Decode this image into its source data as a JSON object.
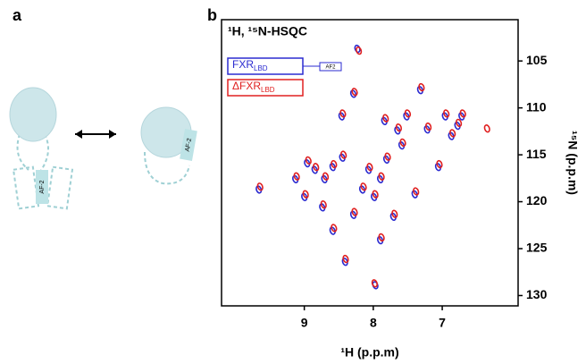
{
  "panel_a": {
    "label": "a",
    "domain_labels": [
      "AF-2",
      "AF-2"
    ]
  },
  "chart_data": {
    "type": "scatter",
    "panel_label": "b",
    "title": "¹H, ¹⁵N-HSQC",
    "xlabel": "¹H (p.p.m)",
    "ylabel": "¹⁵N (p.p.m)",
    "xlim": [
      10.2,
      5.9
    ],
    "xticks": [
      9,
      8,
      7
    ],
    "ylim": [
      131.1,
      100.6
    ],
    "yticks": [
      105,
      110,
      115,
      120,
      125,
      130
    ],
    "legend_position": "upper left",
    "legend_inset_label": "AF2",
    "series": [
      {
        "name": "FXR",
        "name_sub": "LBD",
        "color": "#2b2bd0",
        "x": [
          9.66,
          8.96,
          8.85,
          8.71,
          8.59,
          8.45,
          8.46,
          8.29,
          8.23,
          8.16,
          8.07,
          7.99,
          7.9,
          7.81,
          7.71,
          7.59,
          7.65,
          7.4,
          7.22,
          7.06,
          6.87,
          6.78,
          6.72,
          6.96,
          8.41,
          7.97,
          8.59,
          8.29,
          7.9,
          7.32,
          8.74,
          9.0,
          9.13,
          7.52,
          7.84
        ],
        "values": [
          118.7,
          115.9,
          116.6,
          117.6,
          116.3,
          115.3,
          110.9,
          108.5,
          103.7,
          118.7,
          116.6,
          119.5,
          117.6,
          115.5,
          121.6,
          114.0,
          112.4,
          119.2,
          112.3,
          116.3,
          113.0,
          111.9,
          110.9,
          110.9,
          126.4,
          128.9,
          123.1,
          121.4,
          124.1,
          108.1,
          120.6,
          119.5,
          117.6,
          110.9,
          111.4
        ]
      },
      {
        "name": "ΔFXR",
        "name_sub": "LBD",
        "color": "#e02020",
        "x": [
          9.64,
          8.94,
          8.83,
          8.69,
          8.57,
          8.43,
          8.44,
          8.27,
          8.21,
          8.14,
          8.05,
          7.97,
          7.88,
          7.79,
          7.69,
          7.57,
          7.63,
          7.38,
          7.2,
          7.04,
          6.85,
          6.76,
          6.7,
          6.94,
          8.4,
          7.98,
          8.57,
          8.27,
          7.88,
          7.3,
          8.72,
          8.98,
          9.11,
          7.5,
          7.82,
          6.35
        ],
        "values": [
          118.4,
          115.6,
          116.3,
          117.3,
          116.0,
          115.0,
          110.6,
          108.3,
          103.9,
          118.4,
          116.3,
          119.2,
          117.3,
          115.2,
          121.3,
          113.7,
          112.1,
          118.9,
          112.0,
          116.0,
          112.7,
          111.6,
          110.6,
          110.6,
          126.1,
          128.7,
          122.8,
          121.1,
          123.8,
          107.8,
          120.3,
          119.2,
          117.3,
          110.6,
          111.1,
          112.2
        ]
      }
    ]
  }
}
